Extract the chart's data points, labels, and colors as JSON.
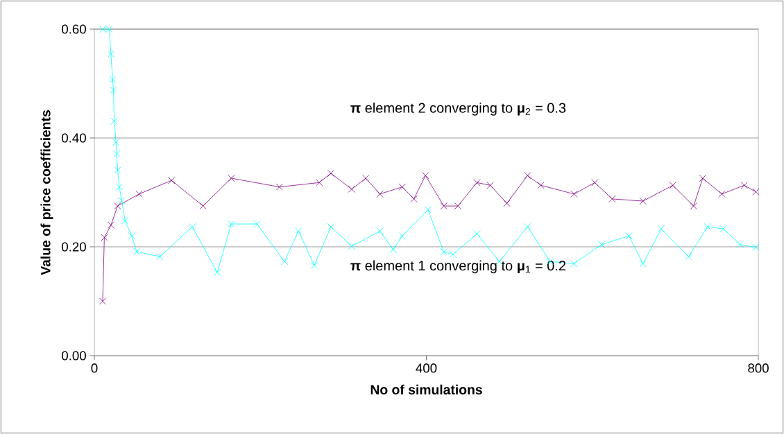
{
  "chart_data": {
    "type": "line",
    "xlabel": "No of simulations",
    "ylabel": "Value of price coefficients",
    "annotations": [
      "**π** element 2   converging to **μ**$_{2}$ = 0.3",
      "**π** element 1   converging to **μ**$_{1}$ = 0.2"
    ],
    "xlim": [
      0,
      800
    ],
    "xticks": [
      0,
      400,
      800
    ],
    "ylim": [
      0,
      0.6
    ],
    "yticks": [
      {
        "value": 0,
        "label": "0.00"
      },
      {
        "value": 0.2,
        "label": "0.20"
      },
      {
        "value": 0.4,
        "label": "0.40"
      },
      {
        "value": 0.6,
        "label": "0.60"
      }
    ],
    "grid": "y",
    "line_style": "solid",
    "series": [
      {
        "color": "#800080",
        "marker": "cross",
        "x": [
          10,
          12,
          20,
          28,
          54,
          93,
          131,
          165,
          223,
          271,
          285,
          310,
          327,
          344,
          371,
          385,
          399,
          421,
          438,
          461,
          477,
          497,
          522,
          538,
          578,
          603,
          624,
          661,
          697,
          722,
          733,
          756,
          783,
          797
        ],
        "values": [
          0.1,
          0.217,
          0.24,
          0.275,
          0.297,
          0.322,
          0.275,
          0.326,
          0.31,
          0.318,
          0.335,
          0.306,
          0.326,
          0.297,
          0.31,
          0.288,
          0.331,
          0.275,
          0.275,
          0.318,
          0.313,
          0.28,
          0.331,
          0.313,
          0.297,
          0.318,
          0.288,
          0.284,
          0.313,
          0.275,
          0.326,
          0.297,
          0.313,
          0.301
        ]
      },
      {
        "color": "#00ffff",
        "marker": "cross",
        "x": [
          10,
          18,
          20,
          22,
          23,
          24,
          26,
          27,
          28,
          30,
          33,
          37,
          45,
          51,
          79,
          118,
          148,
          165,
          196,
          229,
          246,
          265,
          285,
          310,
          344,
          360,
          371,
          402,
          421,
          432,
          461,
          488,
          522,
          549,
          578,
          611,
          644,
          661,
          683,
          716,
          739,
          758,
          778,
          797
        ],
        "values": [
          0.6,
          0.6,
          0.554,
          0.507,
          0.488,
          0.431,
          0.392,
          0.371,
          0.341,
          0.31,
          0.285,
          0.248,
          0.22,
          0.191,
          0.182,
          0.237,
          0.153,
          0.242,
          0.242,
          0.173,
          0.229,
          0.166,
          0.237,
          0.201,
          0.229,
          0.195,
          0.22,
          0.268,
          0.191,
          0.186,
          0.224,
          0.173,
          0.237,
          0.173,
          0.169,
          0.204,
          0.22,
          0.169,
          0.233,
          0.182,
          0.237,
          0.233,
          0.204,
          0.199
        ]
      }
    ]
  }
}
